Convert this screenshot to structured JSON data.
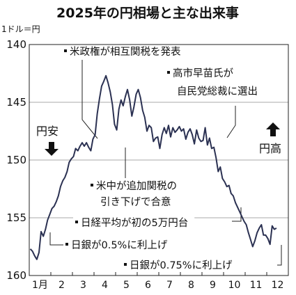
{
  "chart_data": {
    "type": "line",
    "title": "2025年の円相場と主な出来事",
    "ylabel": "1ドル＝円",
    "y_inverted": true,
    "ylim": [
      160,
      140
    ],
    "yticks": [
      140,
      145,
      150,
      155,
      160
    ],
    "ytick_labels": [
      "140",
      "145",
      "150",
      "155",
      "160"
    ],
    "categories": [
      "1月",
      "2",
      "3",
      "4",
      "5",
      "6",
      "7",
      "8",
      "9",
      "10",
      "11",
      "12"
    ],
    "series": [
      {
        "color": "#2b3152",
        "x": [
          0.05,
          0.15,
          0.25,
          0.35,
          0.45,
          0.55,
          0.65,
          0.75,
          0.85,
          0.95,
          1.05,
          1.15,
          1.25,
          1.35,
          1.45,
          1.55,
          1.65,
          1.75,
          1.85,
          1.95,
          2.05,
          2.15,
          2.25,
          2.35,
          2.45,
          2.55,
          2.65,
          2.75,
          2.85,
          2.95,
          3.05,
          3.15,
          3.25,
          3.35,
          3.45,
          3.55,
          3.65,
          3.75,
          3.85,
          3.95,
          4.05,
          4.15,
          4.25,
          4.35,
          4.45,
          4.55,
          4.65,
          4.75,
          4.85,
          4.95,
          5.05,
          5.15,
          5.25,
          5.35,
          5.45,
          5.55,
          5.65,
          5.75,
          5.85,
          5.95,
          6.05,
          6.15,
          6.25,
          6.35,
          6.45,
          6.55,
          6.65,
          6.75,
          6.85,
          6.95,
          7.05,
          7.15,
          7.25,
          7.35,
          7.45,
          7.55,
          7.65,
          7.75,
          7.85,
          7.95,
          8.05,
          8.15,
          8.25,
          8.35,
          8.45,
          8.55,
          8.65,
          8.75,
          8.85,
          8.95,
          9.05,
          9.15,
          9.25,
          9.35,
          9.45,
          9.55,
          9.65,
          9.75,
          9.85,
          9.95,
          10.05,
          10.15,
          10.25,
          10.35,
          10.45,
          10.55,
          10.65,
          10.75,
          10.85,
          10.95,
          11.05,
          11.15,
          11.25,
          11.35,
          11.45
        ],
        "values": [
          157.7,
          157.9,
          158.3,
          158.6,
          158.0,
          156.2,
          156.6,
          156.0,
          155.2,
          154.7,
          154.2,
          154.0,
          153.6,
          153.1,
          152.3,
          151.8,
          151.5,
          151.0,
          150.2,
          149.9,
          149.7,
          149.0,
          149.2,
          148.8,
          148.5,
          148.8,
          148.5,
          148.9,
          149.2,
          148.2,
          147.8,
          146.0,
          144.7,
          143.6,
          143.2,
          142.7,
          143.3,
          144.1,
          145.2,
          146.9,
          147.4,
          145.6,
          144.8,
          145.3,
          144.5,
          143.9,
          144.8,
          146.2,
          145.4,
          144.3,
          143.9,
          144.6,
          145.7,
          146.3,
          147.5,
          147.0,
          147.2,
          148.4,
          148.1,
          148.0,
          149.0,
          147.8,
          147.2,
          147.7,
          147.0,
          148.0,
          147.2,
          147.6,
          147.4,
          147.1,
          147.5,
          147.3,
          148.2,
          147.6,
          147.3,
          147.8,
          148.6,
          147.4,
          148.1,
          148.4,
          148.3,
          147.2,
          148.7,
          148.1,
          149.0,
          148.9,
          149.8,
          151.0,
          150.6,
          151.6,
          151.9,
          152.3,
          152.2,
          152.9,
          153.1,
          153.7,
          154.1,
          154.5,
          154.9,
          155.3,
          155.6,
          156.3,
          156.9,
          157.5,
          157.0,
          156.3,
          155.9,
          155.6,
          156.5,
          156.5,
          156.8,
          157.3,
          155.7,
          156.0,
          155.9
        ]
      }
    ],
    "annotations": [
      {
        "text": "米政権が相互関税を発表"
      },
      {
        "text": "高市早苗氏が"
      },
      {
        "text": "自民党総裁に選出"
      },
      {
        "text": "米中が追加関税の"
      },
      {
        "text": "引き下げで合意"
      },
      {
        "text": "日経平均が初の5万円台"
      },
      {
        "text": "日銀が0.5%に利上げ"
      },
      {
        "text": "日銀が0.75%に利上げ"
      }
    ],
    "side_labels": {
      "weak": "円安",
      "strong": "円高"
    }
  }
}
